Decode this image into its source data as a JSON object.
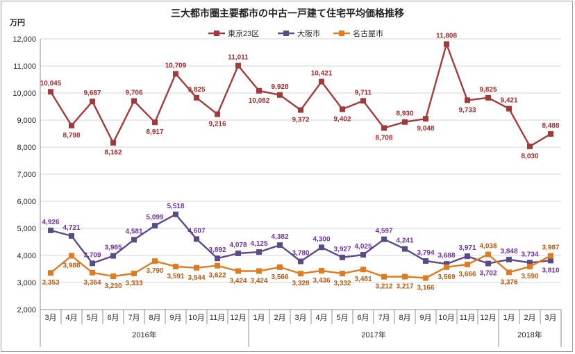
{
  "chart_data": {
    "type": "line",
    "title": "三大都市圏主要都市の中古一戸建て住宅平均価格推移",
    "unit_label": "万円",
    "ylim": [
      2000,
      12000
    ],
    "yticks": [
      "2,000",
      "3,000",
      "4,000",
      "5,000",
      "6,000",
      "7,000",
      "8,000",
      "9,000",
      "10,000",
      "11,000",
      "12,000"
    ],
    "ytick_values": [
      2000,
      3000,
      4000,
      5000,
      6000,
      7000,
      8000,
      9000,
      10000,
      11000,
      12000
    ],
    "categories": [
      "3月",
      "4月",
      "5月",
      "6月",
      "7月",
      "8月",
      "9月",
      "10月",
      "11月",
      "12月",
      "1月",
      "2月",
      "3月",
      "4月",
      "5月",
      "6月",
      "7月",
      "8月",
      "9月",
      "10月",
      "11月",
      "12月",
      "1月",
      "2月",
      "3月"
    ],
    "years": [
      {
        "label": "2016年",
        "start": 0,
        "end": 9
      },
      {
        "label": "2017年",
        "start": 10,
        "end": 21
      },
      {
        "label": "2018年",
        "start": 22,
        "end": 24
      }
    ],
    "legend_position": "top-center",
    "grid": true,
    "series": [
      {
        "name": "東京23区",
        "color": "#a33a3a",
        "label_color": "#a52a2a",
        "values": [
          10045,
          8798,
          9687,
          8162,
          9706,
          8917,
          10709,
          9825,
          9216,
          11011,
          10082,
          9928,
          9372,
          10421,
          9402,
          9711,
          8708,
          8930,
          9048,
          11808,
          9733,
          9825,
          9421,
          8030,
          8488
        ],
        "labels": [
          "10,045",
          "8,798",
          "9,687",
          "8,162",
          "9,706",
          "8,917",
          "10,709",
          "9,825",
          "9,216",
          "11,011",
          "10,082",
          "9,928",
          "9,372",
          "10,421",
          "9,402",
          "9,711",
          "8,708",
          "8,930",
          "9,048",
          "11,808",
          "9,733",
          "9,825",
          "9,421",
          "8,030",
          "8,488"
        ],
        "label_pos": [
          "above",
          "below",
          "above",
          "below",
          "above",
          "below",
          "above",
          "above",
          "below",
          "above",
          "below",
          "above",
          "below",
          "above",
          "below",
          "above",
          "below",
          "above",
          "below",
          "above",
          "below",
          "above",
          "above",
          "below",
          "above"
        ]
      },
      {
        "name": "大阪市",
        "color": "#5a4a8a",
        "label_color": "#7030a0",
        "values": [
          4926,
          4721,
          3709,
          3985,
          4581,
          5099,
          5518,
          4607,
          3892,
          4078,
          4125,
          4382,
          3780,
          4300,
          3927,
          4025,
          4597,
          4241,
          3794,
          3688,
          3971,
          3702,
          3848,
          3734,
          3810
        ],
        "labels": [
          "4,926",
          "4,721",
          "3,709",
          "3,985",
          "4,581",
          "5,099",
          "5,518",
          "4,607",
          "3,892",
          "4,078",
          "4,125",
          "4,382",
          "3,780",
          "4,300",
          "3,927",
          "4,025",
          "4,597",
          "4,241",
          "3,794",
          "3,688",
          "3,971",
          "3,702",
          "3,848",
          "3,734",
          "3,810"
        ],
        "label_pos": [
          "above",
          "above",
          "above",
          "above",
          "above",
          "above",
          "above",
          "above",
          "above",
          "above",
          "above",
          "above",
          "above",
          "above",
          "above",
          "above",
          "above",
          "above",
          "above",
          "above",
          "above",
          "below",
          "above",
          "above",
          "below"
        ]
      },
      {
        "name": "名古屋市",
        "color": "#e07b20",
        "label_color": "#b85a10",
        "values": [
          3353,
          3988,
          3364,
          3230,
          3333,
          3790,
          3591,
          3544,
          3622,
          3424,
          3424,
          3566,
          3328,
          3436,
          3332,
          3481,
          3212,
          3217,
          3166,
          3569,
          3666,
          4038,
          3376,
          3590,
          3987
        ],
        "labels": [
          "3,353",
          "3,988",
          "3,364",
          "3,230",
          "3,333",
          "3,790",
          "3,591",
          "3,544",
          "3,622",
          "3,424",
          "3,424",
          "3,566",
          "3,328",
          "3,436",
          "3,332",
          "3,481",
          "3,212",
          "3,217",
          "3,166",
          "3,569",
          "3,666",
          "4,038",
          "3,376",
          "3,590",
          "3,987"
        ],
        "label_pos": [
          "below",
          "below",
          "below",
          "below",
          "below",
          "below",
          "below",
          "below",
          "below",
          "below",
          "below",
          "below",
          "below",
          "below",
          "below",
          "below",
          "below",
          "below",
          "below",
          "below",
          "below",
          "above",
          "below",
          "below",
          "above"
        ]
      }
    ]
  }
}
